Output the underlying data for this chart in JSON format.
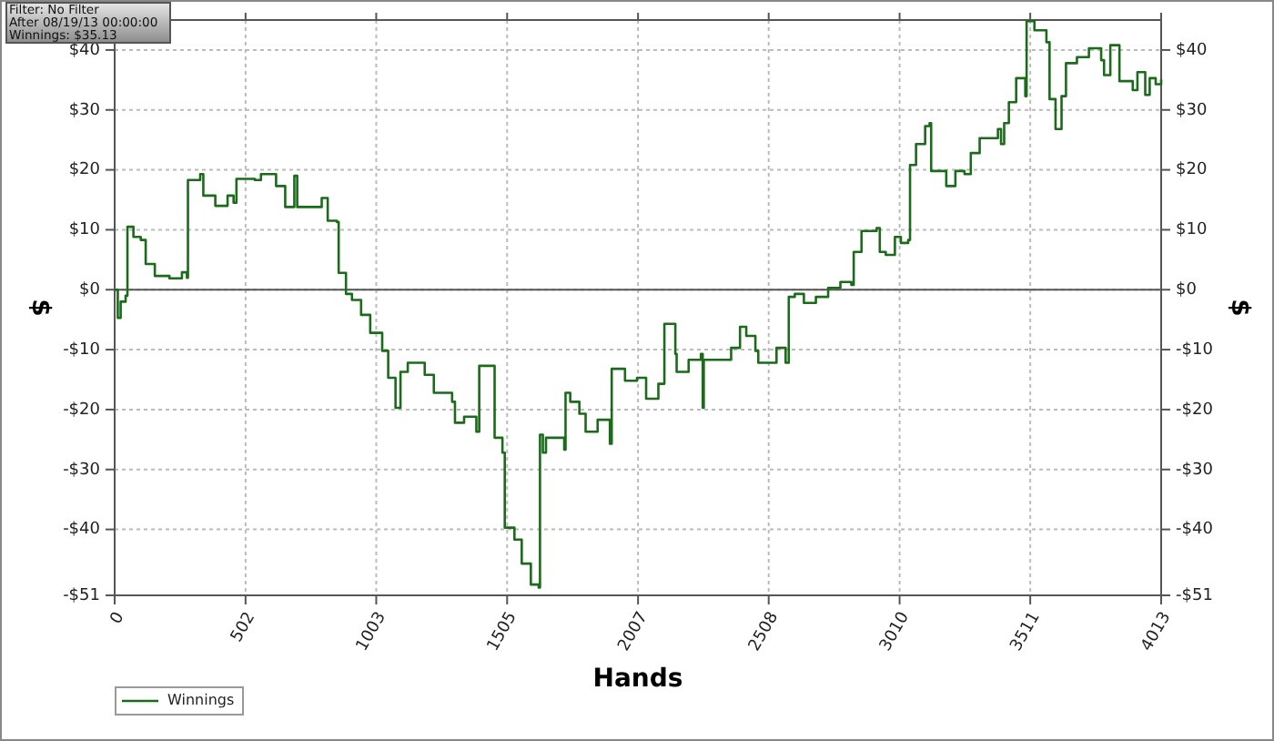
{
  "chart_data": {
    "type": "step",
    "xlabel": "Hands",
    "ylabel": "$",
    "y2label": "$",
    "annotations": [
      "Filter: No Filter",
      "After 08/19/13 00:00:00",
      "Winnings: $35.13"
    ],
    "xlim": [
      0,
      4013
    ],
    "xticks": [
      0,
      502,
      1003,
      1505,
      2007,
      2508,
      3010,
      3511,
      4013
    ],
    "ylim": [
      -51,
      45
    ],
    "yticks": [
      {
        "value": -51,
        "label": "-$51"
      },
      {
        "value": -40,
        "label": "-$40"
      },
      {
        "value": -30,
        "label": "-$30"
      },
      {
        "value": -20,
        "label": "-$20"
      },
      {
        "value": -10,
        "label": "-$10"
      },
      {
        "value": 0,
        "label": "$0"
      },
      {
        "value": 10,
        "label": "$10"
      },
      {
        "value": 20,
        "label": "$20"
      },
      {
        "value": 30,
        "label": "$30"
      },
      {
        "value": 40,
        "label": "$40"
      }
    ],
    "y2lim": [
      -51,
      45
    ],
    "y2ticks": [
      {
        "value": -51,
        "label": "-$51"
      },
      {
        "value": -40,
        "label": "-$40"
      },
      {
        "value": -30,
        "label": "-$30"
      },
      {
        "value": -20,
        "label": "-$20"
      },
      {
        "value": -10,
        "label": "-$10"
      },
      {
        "value": 0,
        "label": "$0"
      },
      {
        "value": 10,
        "label": "$10"
      },
      {
        "value": 20,
        "label": "$20"
      },
      {
        "value": 30,
        "label": "$30"
      },
      {
        "value": 40,
        "label": "$40"
      }
    ],
    "grid": true,
    "legend": "bottom left",
    "line_style": "solid",
    "ref_lines": [
      {
        "axis": "y",
        "value": 0,
        "color": "#555555"
      }
    ],
    "x": [
      0,
      12,
      23,
      42,
      49,
      72,
      100,
      119,
      154,
      210,
      258,
      277,
      281,
      305,
      328,
      340,
      386,
      433,
      456,
      467,
      537,
      561,
      619,
      654,
      689,
      700,
      782,
      794,
      817,
      852,
      859,
      887,
      910,
      945,
      980,
      1026,
      1049,
      1077,
      1096,
      1124,
      1189,
      1224,
      1294,
      1305,
      1340,
      1387,
      1398,
      1440,
      1457,
      1487,
      1496,
      1533,
      1561,
      1596,
      1626,
      1631,
      1642,
      1654,
      1724,
      1729,
      1747,
      1782,
      1806,
      1852,
      1899,
      1906,
      1957,
      2003,
      2038,
      2085,
      2108,
      2131,
      2150,
      2155,
      2201,
      2248,
      2255,
      2259,
      2317,
      2364,
      2398,
      2422,
      2457,
      2468,
      2527,
      2538,
      2573,
      2585,
      2608,
      2643,
      2689,
      2736,
      2783,
      2825,
      2834,
      2864,
      2922,
      2934,
      2957,
      2992,
      3015,
      3043,
      3050,
      3073,
      3108,
      3125,
      3131,
      3189,
      3224,
      3259,
      3283,
      3317,
      3387,
      3399,
      3411,
      3429,
      3457,
      3485,
      3492,
      3497,
      3527,
      3573,
      3585,
      3608,
      3631,
      3648,
      3690,
      3736,
      3783,
      3794,
      3818,
      3841,
      3853,
      3887,
      3904,
      3922,
      3952,
      3969,
      3992,
      4013
    ],
    "series": [
      {
        "name": "Winnings",
        "color": "#1a6b1a",
        "values": [
          0,
          -4.7,
          -2,
          -1,
          10.5,
          8.8,
          8.3,
          4.3,
          2.3,
          1.9,
          2.9,
          2,
          18.3,
          18.3,
          19.3,
          15.7,
          14,
          15.7,
          14.5,
          18.5,
          18.3,
          19.3,
          17.3,
          13.8,
          19,
          13.8,
          13.8,
          15.3,
          11.5,
          11.3,
          2.8,
          -0.7,
          -1.7,
          -4.2,
          -7.2,
          -10.2,
          -14.7,
          -19.7,
          -13.7,
          -12.2,
          -14.2,
          -17.2,
          -18.7,
          -22.2,
          -21.2,
          -23.7,
          -12.7,
          -12.7,
          -24.7,
          -27.2,
          -39.7,
          -41.7,
          -45.7,
          -49.2,
          -49.7,
          -24.2,
          -27.2,
          -24.7,
          -26.7,
          -17.2,
          -18.7,
          -20.7,
          -23.7,
          -21.7,
          -25.7,
          -13.2,
          -15.2,
          -14.7,
          -18.2,
          -15.7,
          -5.7,
          -5.7,
          -10.7,
          -13.7,
          -11.7,
          -10.7,
          -19.7,
          -11.7,
          -11.7,
          -9.7,
          -6.2,
          -7.7,
          -10.2,
          -12.2,
          -12.2,
          -9.7,
          -12.2,
          -1.2,
          -0.7,
          -2.2,
          -1.2,
          0.3,
          1.3,
          0.8,
          6.3,
          9.8,
          10.3,
          6.3,
          5.8,
          8.8,
          7.8,
          8.3,
          20.8,
          24.3,
          27.3,
          27.8,
          19.8,
          17.3,
          19.8,
          19.3,
          22.8,
          25.3,
          26.8,
          24.3,
          27.8,
          31.3,
          35.3,
          35.3,
          32.3,
          44.8,
          43.3,
          41.3,
          31.8,
          26.8,
          32.3,
          37.8,
          38.8,
          40.3,
          38.3,
          35.8,
          40.8,
          40.8,
          34.8,
          34.8,
          33.3,
          36.3,
          32.5,
          35.3,
          34.3,
          35.1
        ]
      }
    ]
  }
}
